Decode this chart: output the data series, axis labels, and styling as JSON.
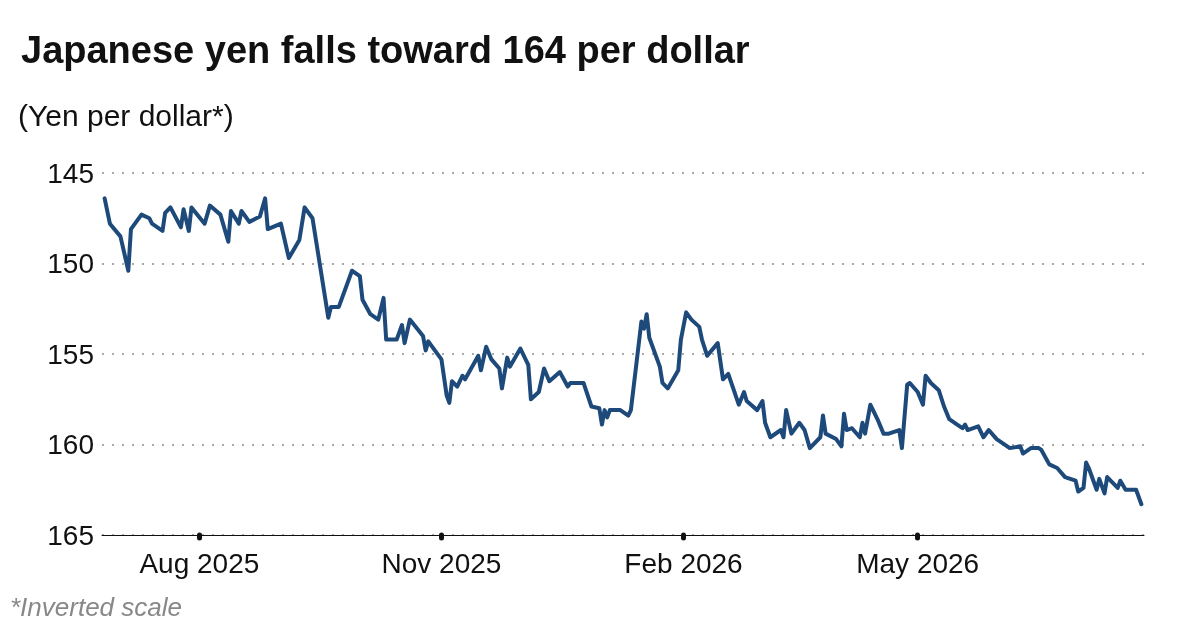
{
  "chart_data": {
    "type": "line",
    "title": "Japanese yen falls toward 164 per dollar",
    "ylabel": "(Yen per dollar*)",
    "annotations": [
      "*Inverted scale"
    ],
    "xlim": [
      "2025-06-25",
      "2026-07-26"
    ],
    "xticks": [
      {
        "value": "2025-08-01",
        "label": "Aug 2025"
      },
      {
        "value": "2025-11-01",
        "label": "Nov 2025"
      },
      {
        "value": "2026-02-01",
        "label": "Feb 2026"
      },
      {
        "value": "2026-05-01",
        "label": "May 2026"
      }
    ],
    "ylim": [
      165,
      145
    ],
    "yticks": [
      145,
      150,
      155,
      160,
      165
    ],
    "grid": "y",
    "marker": "none",
    "line_style": "solid",
    "series": [
      {
        "color": "#1d4a7a",
        "x": [
          "2025-06-26",
          "2025-06-28",
          "2025-07-02",
          "2025-07-05",
          "2025-07-06",
          "2025-07-10",
          "2025-07-13",
          "2025-07-14",
          "2025-07-18",
          "2025-07-19",
          "2025-07-21",
          "2025-07-25",
          "2025-07-26",
          "2025-07-28",
          "2025-07-29",
          "2025-08-03",
          "2025-08-05",
          "2025-08-09",
          "2025-08-12",
          "2025-08-13",
          "2025-08-16",
          "2025-08-17",
          "2025-08-20",
          "2025-08-24",
          "2025-08-26",
          "2025-08-27",
          "2025-09-01",
          "2025-09-04",
          "2025-09-08",
          "2025-09-10",
          "2025-09-13",
          "2025-09-19",
          "2025-09-20",
          "2025-09-23",
          "2025-09-28",
          "2025-10-01",
          "2025-10-02",
          "2025-10-05",
          "2025-10-08",
          "2025-10-10",
          "2025-10-11",
          "2025-10-15",
          "2025-10-17",
          "2025-10-18",
          "2025-10-20",
          "2025-10-25",
          "2025-10-26",
          "2025-10-27",
          "2025-11-01",
          "2025-11-03",
          "2025-11-04",
          "2025-11-05",
          "2025-11-07",
          "2025-11-09",
          "2025-11-10",
          "2025-11-15",
          "2025-11-16",
          "2025-11-18",
          "2025-11-20",
          "2025-11-23",
          "2025-11-24",
          "2025-11-26",
          "2025-11-27",
          "2025-12-01",
          "2025-12-04",
          "2025-12-05",
          "2025-12-08",
          "2025-12-10",
          "2025-12-12",
          "2025-12-16",
          "2025-12-19",
          "2025-12-20",
          "2025-12-25",
          "2025-12-28",
          "2025-12-31",
          "2026-01-01",
          "2026-01-02",
          "2026-01-03",
          "2026-01-04",
          "2026-01-08",
          "2026-01-11",
          "2026-01-12",
          "2026-01-16",
          "2026-01-17",
          "2026-01-18",
          "2026-01-19",
          "2026-01-23",
          "2026-01-24",
          "2026-01-26",
          "2026-01-30",
          "2026-01-31",
          "2026-02-02",
          "2026-02-04",
          "2026-02-07",
          "2026-02-08",
          "2026-02-10",
          "2026-02-14",
          "2026-02-16",
          "2026-02-18",
          "2026-02-22",
          "2026-02-24",
          "2026-02-25",
          "2026-03-01",
          "2026-03-03",
          "2026-03-04",
          "2026-03-06",
          "2026-03-10",
          "2026-03-11",
          "2026-03-12",
          "2026-03-14",
          "2026-03-17",
          "2026-03-19",
          "2026-03-21",
          "2026-03-25",
          "2026-03-26",
          "2026-03-27",
          "2026-03-31",
          "2026-04-02",
          "2026-04-03",
          "2026-04-04",
          "2026-04-06",
          "2026-04-09",
          "2026-04-10",
          "2026-04-11",
          "2026-04-13",
          "2026-04-16",
          "2026-04-18",
          "2026-04-20",
          "2026-04-24",
          "2026-04-25",
          "2026-04-27",
          "2026-04-28",
          "2026-05-01",
          "2026-05-03",
          "2026-05-04",
          "2026-05-06",
          "2026-05-09",
          "2026-05-11",
          "2026-05-13",
          "2026-05-16",
          "2026-05-18",
          "2026-05-19",
          "2026-05-20",
          "2026-05-24",
          "2026-05-26",
          "2026-05-28",
          "2026-05-31",
          "2026-06-05",
          "2026-06-09",
          "2026-06-10",
          "2026-06-13",
          "2026-06-16",
          "2026-06-17",
          "2026-06-20",
          "2026-06-23",
          "2026-06-26",
          "2026-06-30",
          "2026-07-01",
          "2026-07-03",
          "2026-07-04",
          "2026-07-05",
          "2026-07-08",
          "2026-07-09",
          "2026-07-11",
          "2026-07-12",
          "2026-07-16",
          "2026-07-17",
          "2026-07-19",
          "2026-07-23",
          "2026-07-25"
        ],
        "values": [
          146.4,
          147.8,
          148.5,
          150.4,
          148.1,
          147.3,
          147.5,
          147.8,
          148.2,
          147.2,
          146.9,
          148.0,
          147.0,
          148.2,
          146.9,
          147.8,
          146.8,
          147.3,
          148.8,
          147.1,
          147.8,
          147.1,
          147.7,
          147.4,
          146.4,
          148.1,
          147.8,
          149.7,
          148.7,
          146.9,
          147.5,
          153.0,
          152.4,
          152.4,
          150.4,
          150.7,
          152.0,
          152.8,
          153.1,
          151.9,
          154.2,
          154.2,
          153.4,
          154.4,
          153.1,
          154.0,
          154.8,
          154.3,
          155.3,
          157.3,
          157.7,
          156.5,
          156.8,
          156.2,
          156.4,
          155.1,
          155.9,
          154.6,
          155.3,
          155.8,
          156.9,
          155.2,
          155.7,
          154.7,
          155.6,
          157.5,
          157.1,
          155.8,
          156.5,
          156.0,
          156.8,
          156.6,
          156.6,
          157.9,
          158.0,
          158.9,
          158.1,
          158.5,
          158.1,
          158.1,
          158.4,
          158.1,
          153.2,
          153.6,
          152.8,
          154.1,
          155.7,
          156.6,
          156.9,
          155.9,
          154.2,
          152.7,
          153.1,
          153.5,
          154.2,
          155.1,
          154.4,
          156.4,
          156.1,
          157.8,
          157.1,
          157.6,
          158.1,
          157.6,
          158.8,
          159.6,
          159.2,
          159.6,
          158.1,
          159.4,
          158.8,
          159.2,
          160.2,
          159.6,
          158.4,
          159.4,
          159.7,
          160.1,
          158.3,
          159.2,
          159.1,
          159.6,
          158.8,
          159.4,
          157.8,
          158.7,
          159.4,
          159.4,
          159.2,
          160.2,
          156.7,
          156.6,
          157.1,
          157.8,
          156.2,
          156.6,
          157.0,
          157.9,
          158.6,
          158.9,
          159.1,
          158.9,
          159.2,
          159.0,
          159.6,
          159.2,
          159.7,
          160.2,
          160.1,
          160.5,
          160.2,
          160.2,
          160.3,
          161.1,
          161.3,
          161.8,
          162.0,
          162.6,
          162.4,
          161.0,
          161.3,
          162.5,
          161.9,
          162.7,
          161.8,
          162.4,
          162.0,
          162.5,
          162.5,
          163.3
        ]
      }
    ]
  }
}
